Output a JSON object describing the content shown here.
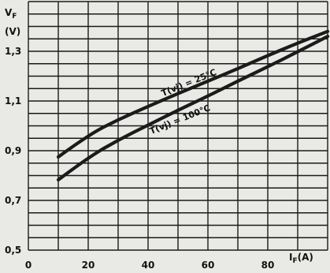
{
  "chart_data": {
    "type": "line",
    "x_axis": {
      "label": "I",
      "label_sub": "F",
      "unit": "(A)",
      "ticks": [
        0,
        20,
        40,
        60,
        80
      ],
      "tick_labels": [
        "0",
        "20",
        "40",
        "60",
        "80"
      ],
      "range": [
        0,
        100
      ]
    },
    "y_axis": {
      "label": "V",
      "label_sub": "F",
      "unit": "(V)",
      "ticks": [
        0.5,
        0.7,
        0.9,
        1.1,
        1.3
      ],
      "tick_labels": [
        "0,5",
        "0,7",
        "0,9",
        "1,1",
        "1,3"
      ],
      "range": [
        0.5,
        1.5
      ]
    },
    "grid": true,
    "series": [
      {
        "name": "T(vj) = 25°C",
        "x": [
          10,
          20,
          30,
          40,
          50,
          60,
          70,
          80,
          90,
          100
        ],
        "y": [
          0.875,
          0.963,
          1.025,
          1.078,
          1.13,
          1.18,
          1.23,
          1.283,
          1.333,
          1.38
        ]
      },
      {
        "name": "T(vj) = 100°C",
        "x": [
          10,
          20,
          30,
          40,
          50,
          60,
          70,
          80,
          90,
          100
        ],
        "y": [
          0.783,
          0.873,
          0.943,
          1.003,
          1.063,
          1.12,
          1.18,
          1.238,
          1.298,
          1.36
        ]
      }
    ]
  }
}
